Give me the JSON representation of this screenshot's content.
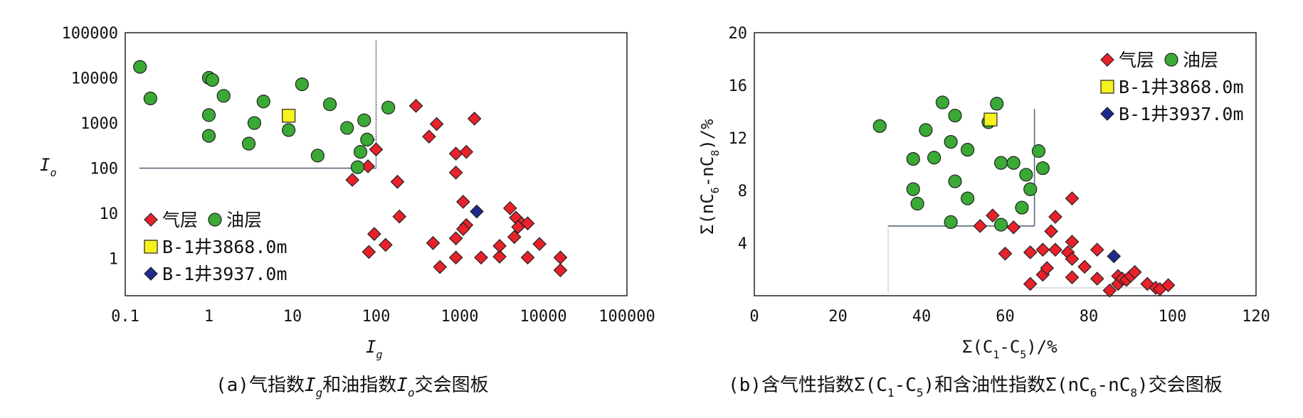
{
  "charts": [
    {
      "id": "a",
      "caption_prefix": "(a)气指数",
      "caption_mid": "和油指数",
      "caption_suffix": "交会图板",
      "xlabel_main": "I",
      "xlabel_sub": "g",
      "ylabel_main": "I",
      "ylabel_sub": "o",
      "xticks": [
        "0.1",
        "1",
        "10",
        "100",
        "1000",
        "10000",
        "100000"
      ],
      "yticks": [
        "100000",
        "10000",
        "1000",
        "100",
        "10",
        "1"
      ],
      "legend": {
        "gas": "气层",
        "oil": "油层",
        "well1": "B-1井3868.0m",
        "well2": "B-1井3937.0m"
      }
    },
    {
      "id": "b",
      "caption_text": "(b)含气性指数Σ(C",
      "caption_s1": "1",
      "caption_t2": "-C",
      "caption_s2": "5",
      "caption_t3": ")和含油性指数Σ(nC",
      "caption_s3": "6",
      "caption_t4": "-nC",
      "caption_s4": "8",
      "caption_t5": ")交会图板",
      "xlabel_t1": "Σ(C",
      "xlabel_s1": "1",
      "xlabel_t2": "-C",
      "xlabel_s2": "5",
      "xlabel_t3": ")/%",
      "ylabel_t1": "Σ(nC",
      "ylabel_s1": "6",
      "ylabel_t2": "-nC",
      "ylabel_s2": "8",
      "ylabel_t3": ")/%",
      "xticks": [
        "0",
        "20",
        "40",
        "60",
        "80",
        "100",
        "120"
      ],
      "yticks": [
        "20",
        "16",
        "12",
        "8",
        "4"
      ],
      "legend": {
        "gas": "气层",
        "oil": "油层",
        "well1": "B-1井3868.0m",
        "well2": "B-1井3937.0m"
      }
    }
  ],
  "colors": {
    "gas": "#e8212b",
    "oil": "#3aa935",
    "well1": "#f6f21e",
    "well2": "#1d2a8c",
    "cutoff": "#5a6a7a"
  },
  "chart_data": [
    {
      "type": "scatter",
      "xscale": "log",
      "yscale": "log",
      "xlim": [
        0.1,
        100000
      ],
      "ylim": [
        0.15,
        100000
      ],
      "grid": false,
      "legend_position": "bottom-left",
      "cutoff_x": 100,
      "cutoff_y": 100,
      "series": [
        {
          "name": "气层",
          "marker": "diamond",
          "points": [
            [
              80,
              430
            ],
            [
              100,
              260
            ],
            [
              80,
              110
            ],
            [
              52,
              55
            ],
            [
              180,
              50
            ],
            [
              190,
              8.5
            ],
            [
              300,
              2400
            ],
            [
              430,
              500
            ],
            [
              530,
              950
            ],
            [
              900,
              210
            ],
            [
              1200,
              230
            ],
            [
              900,
              80
            ],
            [
              1500,
              1250
            ],
            [
              1100,
              18
            ],
            [
              1200,
              5.5
            ],
            [
              900,
              2.8
            ],
            [
              1100,
              4.5
            ],
            [
              95,
              3.5
            ],
            [
              82,
              1.4
            ],
            [
              130,
              2
            ],
            [
              480,
              2.2
            ],
            [
              580,
              0.65
            ],
            [
              900,
              1.05
            ],
            [
              1800,
              1.05
            ],
            [
              3000,
              1.1
            ],
            [
              3000,
              1.9
            ],
            [
              4000,
              13
            ],
            [
              4700,
              8
            ],
            [
              5500,
              6
            ],
            [
              6500,
              6
            ],
            [
              4500,
              3
            ],
            [
              5000,
              5
            ],
            [
              6500,
              1.05
            ],
            [
              9000,
              2.1
            ],
            [
              16000,
              1.05
            ],
            [
              16000,
              0.55
            ]
          ]
        },
        {
          "name": "油层",
          "marker": "circle",
          "points": [
            [
              0.15,
              17500
            ],
            [
              0.2,
              3500
            ],
            [
              1,
              10000
            ],
            [
              1.1,
              9000
            ],
            [
              1.5,
              4000
            ],
            [
              1,
              1500
            ],
            [
              1,
              520
            ],
            [
              3,
              350
            ],
            [
              3.5,
              1000
            ],
            [
              4.5,
              3000
            ],
            [
              9,
              700
            ],
            [
              13,
              7200
            ],
            [
              20,
              190
            ],
            [
              28,
              2600
            ],
            [
              45,
              780
            ],
            [
              60,
              105
            ],
            [
              65,
              230
            ],
            [
              72,
              1150
            ],
            [
              78,
              430
            ],
            [
              140,
              2200
            ]
          ]
        },
        {
          "name": "B-1井3868.0m",
          "marker": "square",
          "points": [
            [
              9,
              1450
            ]
          ]
        },
        {
          "name": "B-1井3937.0m",
          "marker": "diamond",
          "points": [
            [
              1600,
              11
            ]
          ]
        }
      ]
    },
    {
      "type": "scatter",
      "xlim": [
        0,
        120
      ],
      "ylim": [
        0,
        20
      ],
      "grid": false,
      "legend_position": "top-right",
      "cutoff_x": 67,
      "cutoff_y": 5.3,
      "series": [
        {
          "name": "气层",
          "marker": "diamond",
          "points": [
            [
              54,
              5.3
            ],
            [
              57,
              6.1
            ],
            [
              60,
              3.2
            ],
            [
              62,
              5.2
            ],
            [
              66,
              3.3
            ],
            [
              66,
              0.9
            ],
            [
              69,
              3.5
            ],
            [
              69,
              1.6
            ],
            [
              70,
              2.1
            ],
            [
              71,
              4.9
            ],
            [
              72,
              6
            ],
            [
              72,
              3.5
            ],
            [
              75,
              3.3
            ],
            [
              76,
              4.1
            ],
            [
              76,
              7.4
            ],
            [
              76,
              2.8
            ],
            [
              76,
              1.4
            ],
            [
              79,
              2.2
            ],
            [
              82,
              3.5
            ],
            [
              82,
              1.3
            ],
            [
              85,
              0.4
            ],
            [
              87,
              1.5
            ],
            [
              87,
              0.9
            ],
            [
              88,
              1.3
            ],
            [
              89,
              1.2
            ],
            [
              90,
              1.5
            ],
            [
              91,
              1.8
            ],
            [
              94,
              0.9
            ],
            [
              96,
              0.6
            ],
            [
              97,
              0.5
            ],
            [
              99,
              0.8
            ]
          ]
        },
        {
          "name": "油层",
          "marker": "circle",
          "points": [
            [
              30,
              12.9
            ],
            [
              38,
              8.1
            ],
            [
              38,
              10.4
            ],
            [
              39,
              7
            ],
            [
              41,
              12.6
            ],
            [
              43,
              10.5
            ],
            [
              45,
              14.7
            ],
            [
              47,
              11.7
            ],
            [
              47,
              5.6
            ],
            [
              48,
              13.7
            ],
            [
              48,
              8.7
            ],
            [
              51,
              7.4
            ],
            [
              51,
              11.1
            ],
            [
              56,
              13.2
            ],
            [
              58,
              14.6
            ],
            [
              59,
              10.1
            ],
            [
              59,
              5.4
            ],
            [
              62,
              10.1
            ],
            [
              64,
              6.7
            ],
            [
              65,
              9.2
            ],
            [
              66,
              8.1
            ],
            [
              68,
              11
            ],
            [
              69,
              9.7
            ]
          ]
        },
        {
          "name": "B-1井3868.0m",
          "marker": "square",
          "points": [
            [
              56.5,
              13.4
            ]
          ]
        },
        {
          "name": "B-1井3937.0m",
          "marker": "diamond",
          "points": [
            [
              86,
              3
            ]
          ]
        }
      ]
    }
  ]
}
